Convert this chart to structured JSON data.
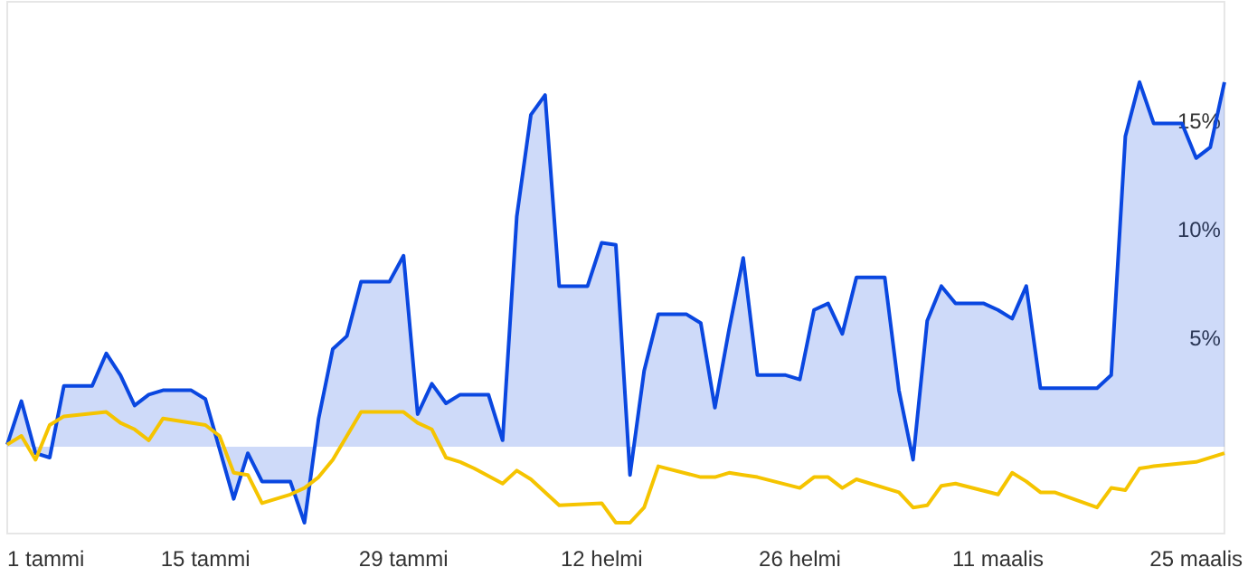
{
  "chart_data": {
    "type": "line",
    "xlim": [
      "--01-01",
      "--03-27"
    ],
    "xticks": [
      {
        "value": "--01-01",
        "label": "1 tammi"
      },
      {
        "value": "--01-15",
        "label": "15 tammi"
      },
      {
        "value": "--01-29",
        "label": "29 tammi"
      },
      {
        "value": "--02-12",
        "label": "12 helmi"
      },
      {
        "value": "--02-26",
        "label": "26 helmi"
      },
      {
        "value": "--03-11",
        "label": "11 maalis"
      },
      {
        "value": "--03-25",
        "label": "25 maalis"
      }
    ],
    "ylim": [
      -4,
      20.5
    ],
    "yticks": [
      {
        "value": 5,
        "label": "5%"
      },
      {
        "value": 10,
        "label": "10%"
      },
      {
        "value": 15,
        "label": "15%"
      }
    ],
    "grid": false,
    "marker": "none",
    "line_style": "solid",
    "series": [
      {
        "type": "area",
        "color": "#0a47e0",
        "x": [
          "--01-01",
          "--01-02",
          "--01-03",
          "--01-04",
          "--01-05",
          "--01-07",
          "--01-08",
          "--01-09",
          "--01-10",
          "--01-11",
          "--01-12",
          "--01-14",
          "--01-15",
          "--01-17",
          "--01-18",
          "--01-19",
          "--01-21",
          "--01-22",
          "--01-23",
          "--01-24",
          "--01-25",
          "--01-26",
          "--01-28",
          "--01-29",
          "--01-30",
          "--01-31",
          "--02-01",
          "--02-02",
          "--02-04",
          "--02-05",
          "--02-06",
          "--02-07",
          "--02-08",
          "--02-09",
          "--02-11",
          "--02-12",
          "--02-13",
          "--02-14",
          "--02-15",
          "--02-16",
          "--02-18",
          "--02-19",
          "--02-20",
          "--02-21",
          "--02-22",
          "--02-23",
          "--02-25",
          "--02-26",
          "--02-27",
          "--02-28",
          "--02-29",
          "--03-01",
          "--03-03",
          "--03-04",
          "--03-05",
          "--03-06",
          "--03-07",
          "--03-08",
          "--03-10",
          "--03-11",
          "--03-12",
          "--03-13",
          "--03-14",
          "--03-18",
          "--03-19",
          "--03-20",
          "--03-21",
          "--03-22",
          "--03-24",
          "--03-25",
          "--03-26",
          "--03-27"
        ],
        "values": [
          0.1,
          2.1,
          -0.3,
          -0.5,
          2.8,
          2.8,
          4.3,
          3.3,
          1.9,
          2.4,
          2.6,
          2.6,
          2.2,
          -2.4,
          -0.3,
          -1.6,
          -1.6,
          -3.5,
          1.3,
          4.5,
          5.1,
          7.6,
          7.6,
          8.8,
          1.5,
          2.9,
          2.0,
          2.4,
          2.4,
          0.3,
          10.6,
          15.3,
          16.2,
          7.4,
          7.4,
          9.4,
          9.3,
          -1.3,
          3.5,
          6.1,
          6.1,
          5.7,
          1.8,
          5.4,
          8.7,
          3.3,
          3.3,
          3.1,
          6.3,
          6.6,
          5.2,
          7.8,
          7.8,
          2.6,
          -0.6,
          5.8,
          7.4,
          6.6,
          6.6,
          6.3,
          5.9,
          7.4,
          2.7,
          2.7,
          3.3,
          14.3,
          16.8,
          14.9,
          14.9,
          13.3,
          13.8,
          16.8
        ]
      },
      {
        "color": "#f5c400",
        "x": [
          "--01-01",
          "--01-02",
          "--01-03",
          "--01-04",
          "--01-05",
          "--01-08",
          "--01-09",
          "--01-10",
          "--01-11",
          "--01-12",
          "--01-15",
          "--01-16",
          "--01-17",
          "--01-18",
          "--01-19",
          "--01-21",
          "--01-22",
          "--01-23",
          "--01-24",
          "--01-25",
          "--01-26",
          "--01-29",
          "--01-30",
          "--01-31",
          "--02-01",
          "--02-02",
          "--02-03",
          "--02-05",
          "--02-06",
          "--02-07",
          "--02-09",
          "--02-12",
          "--02-13",
          "--02-14",
          "--02-15",
          "--02-16",
          "--02-19",
          "--02-20",
          "--02-21",
          "--02-22",
          "--02-23",
          "--02-26",
          "--02-27",
          "--02-28",
          "--02-29",
          "--03-01",
          "--03-04",
          "--03-05",
          "--03-06",
          "--03-07",
          "--03-08",
          "--03-11",
          "--03-12",
          "--03-13",
          "--03-14",
          "--03-15",
          "--03-18",
          "--03-19",
          "--03-20",
          "--03-21",
          "--03-22",
          "--03-25",
          "--03-27"
        ],
        "values": [
          0.1,
          0.5,
          -0.6,
          1.0,
          1.4,
          1.6,
          1.1,
          0.8,
          0.3,
          1.3,
          1.0,
          0.5,
          -1.2,
          -1.3,
          -2.6,
          -2.2,
          -1.9,
          -1.4,
          -0.6,
          0.5,
          1.6,
          1.6,
          1.1,
          0.8,
          -0.5,
          -0.7,
          -1.0,
          -1.7,
          -1.1,
          -1.5,
          -2.7,
          -2.6,
          -3.5,
          -3.5,
          -2.8,
          -0.9,
          -1.4,
          -1.4,
          -1.2,
          -1.3,
          -1.4,
          -1.9,
          -1.4,
          -1.4,
          -1.9,
          -1.5,
          -2.1,
          -2.8,
          -2.7,
          -1.8,
          -1.7,
          -2.2,
          -1.2,
          -1.6,
          -2.1,
          -2.1,
          -2.8,
          -1.9,
          -2.0,
          -1.0,
          -0.9,
          -0.7,
          -0.3
        ]
      }
    ]
  }
}
